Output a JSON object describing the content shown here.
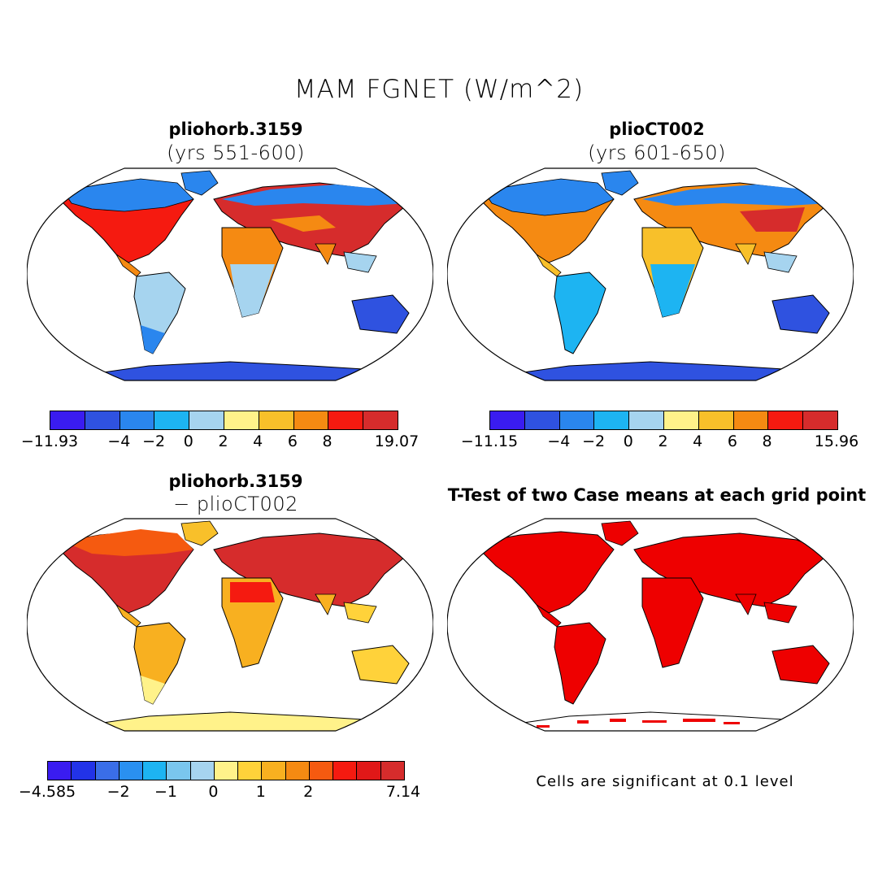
{
  "title": "MAM FGNET (W/m^2)",
  "panels": [
    {
      "title": "pliohorb.3159",
      "subtitle": "(yrs 551-600)"
    },
    {
      "title": "plioCT002",
      "subtitle": "(yrs 601-650)"
    },
    {
      "title": "pliohorb.3159",
      "subtitle": "− plioCT002"
    },
    {
      "title": "T-Test of two Case means at each grid point",
      "subtitle": ""
    }
  ],
  "colorbars": {
    "top_left": {
      "colors": [
        "#3a1cf0",
        "#2f52e0",
        "#2a86ee",
        "#1db4f2",
        "#a6d4ef",
        "#fff28a",
        "#f8c02a",
        "#f58a12",
        "#f51a10",
        "#d62c2c"
      ],
      "labels": [
        "−11.93",
        "−4",
        "−2",
        "0",
        "2",
        "4",
        "6",
        "8",
        "19.07"
      ]
    },
    "top_right": {
      "colors": [
        "#3a1cf0",
        "#2f52e0",
        "#2a86ee",
        "#1db4f2",
        "#a6d4ef",
        "#fff28a",
        "#f8c02a",
        "#f58a12",
        "#f51a10",
        "#d62c2c"
      ],
      "labels": [
        "−11.15",
        "−4",
        "−2",
        "0",
        "2",
        "4",
        "6",
        "8",
        "15.96"
      ]
    },
    "bottom_left": {
      "colors": [
        "#3a1cf0",
        "#2233e8",
        "#3a6ee8",
        "#2a90f0",
        "#1db4f2",
        "#7ac6ee",
        "#a6d4ef",
        "#fff28a",
        "#ffd23a",
        "#f8b020",
        "#f58a12",
        "#f55a10",
        "#f51a10",
        "#e01818",
        "#d62c2c"
      ],
      "labels": [
        "−4.585",
        "−2",
        "−1",
        "0",
        "1",
        "2",
        "7.14"
      ]
    }
  },
  "significance_color": "#ee0000",
  "note": "Cells are significant at 0.1 level"
}
